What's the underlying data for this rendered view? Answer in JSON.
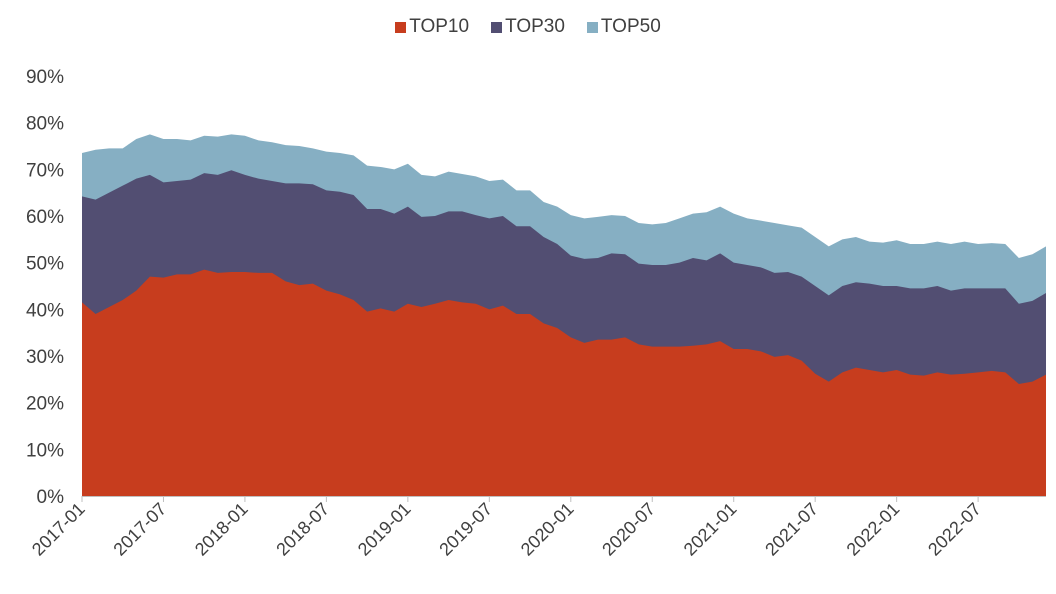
{
  "chart_data": {
    "type": "area",
    "stacked": false,
    "x": [
      "2017-01",
      "2017-02",
      "2017-03",
      "2017-04",
      "2017-05",
      "2017-06",
      "2017-07",
      "2017-08",
      "2017-09",
      "2017-10",
      "2017-11",
      "2017-12",
      "2018-01",
      "2018-02",
      "2018-03",
      "2018-04",
      "2018-05",
      "2018-06",
      "2018-07",
      "2018-08",
      "2018-09",
      "2018-10",
      "2018-11",
      "2018-12",
      "2019-01",
      "2019-02",
      "2019-03",
      "2019-04",
      "2019-05",
      "2019-06",
      "2019-07",
      "2019-08",
      "2019-09",
      "2019-10",
      "2019-11",
      "2019-12",
      "2020-01",
      "2020-02",
      "2020-03",
      "2020-04",
      "2020-05",
      "2020-06",
      "2020-07",
      "2020-08",
      "2020-09",
      "2020-10",
      "2020-11",
      "2020-12",
      "2021-01",
      "2021-02",
      "2021-03",
      "2021-04",
      "2021-05",
      "2021-06",
      "2021-07",
      "2021-08",
      "2021-09",
      "2021-10",
      "2021-11",
      "2021-12",
      "2022-01",
      "2022-02",
      "2022-03",
      "2022-04",
      "2022-05",
      "2022-06",
      "2022-07",
      "2022-08",
      "2022-09",
      "2022-10",
      "2022-11",
      "2022-12"
    ],
    "x_tick_labels": [
      "2017-01",
      "2017-07",
      "2018-01",
      "2018-07",
      "2019-01",
      "2019-07",
      "2020-01",
      "2020-07",
      "2021-01",
      "2021-07",
      "2022-01",
      "2022-07"
    ],
    "series": [
      {
        "name": "TOP50",
        "color": "#86afc3",
        "values": [
          73.5,
          74.2,
          74.5,
          74.5,
          76.5,
          77.5,
          76.5,
          76.5,
          76.2,
          77.2,
          77.0,
          77.5,
          77.2,
          76.2,
          75.8,
          75.2,
          75.0,
          74.5,
          73.8,
          73.5,
          73.0,
          70.8,
          70.5,
          70.0,
          71.2,
          68.8,
          68.5,
          69.5,
          69.0,
          68.5,
          67.5,
          67.8,
          65.5,
          65.5,
          63.0,
          62.0,
          60.2,
          59.5,
          59.8,
          60.2,
          60.0,
          58.5,
          58.2,
          58.5,
          59.5,
          60.5,
          60.8,
          62.0,
          60.5,
          59.5,
          59.0,
          58.5,
          58.0,
          57.5,
          55.5,
          53.5,
          55.0,
          55.5,
          54.5,
          54.3,
          54.8,
          54.0,
          54.0,
          54.5,
          54.0,
          54.5,
          54.0,
          54.2,
          54.0,
          51.0,
          51.8,
          53.5
        ]
      },
      {
        "name": "TOP30",
        "color": "#524e72",
        "values": [
          64.2,
          63.5,
          65.0,
          66.5,
          68.0,
          68.8,
          67.2,
          67.5,
          67.8,
          69.2,
          68.8,
          69.8,
          68.8,
          68.0,
          67.5,
          67.0,
          67.0,
          66.8,
          65.5,
          65.2,
          64.5,
          61.5,
          61.5,
          60.5,
          62.0,
          59.8,
          60.0,
          61.0,
          61.0,
          60.2,
          59.5,
          60.0,
          57.8,
          57.8,
          55.5,
          54.0,
          51.5,
          50.8,
          51.0,
          52.0,
          51.8,
          49.8,
          49.5,
          49.5,
          50.0,
          51.0,
          50.5,
          52.0,
          50.0,
          49.5,
          49.0,
          47.8,
          48.0,
          47.0,
          45.0,
          43.0,
          45.0,
          45.8,
          45.5,
          45.0,
          45.0,
          44.5,
          44.5,
          45.0,
          44.0,
          44.5,
          44.5,
          44.5,
          44.5,
          41.2,
          41.8,
          43.5
        ]
      },
      {
        "name": "TOP10",
        "color": "#c73d1e",
        "values": [
          41.5,
          39.0,
          40.5,
          42.0,
          44.0,
          47.0,
          46.8,
          47.5,
          47.5,
          48.5,
          47.8,
          48.0,
          48.0,
          47.8,
          47.8,
          46.0,
          45.2,
          45.5,
          44.0,
          43.2,
          42.0,
          39.5,
          40.2,
          39.5,
          41.2,
          40.5,
          41.2,
          42.0,
          41.5,
          41.2,
          40.0,
          40.8,
          39.0,
          39.0,
          37.0,
          36.0,
          34.0,
          32.8,
          33.5,
          33.5,
          34.0,
          32.5,
          32.0,
          32.0,
          32.0,
          32.2,
          32.5,
          33.2,
          31.5,
          31.5,
          31.0,
          29.8,
          30.2,
          29.0,
          26.2,
          24.5,
          26.5,
          27.5,
          27.0,
          26.5,
          27.0,
          26.0,
          25.8,
          26.5,
          26.0,
          26.2,
          26.5,
          26.8,
          26.5,
          24.0,
          24.5,
          26.0
        ]
      }
    ],
    "legend_order": [
      "TOP10",
      "TOP30",
      "TOP50"
    ],
    "y_tick_labels": [
      "0%",
      "10%",
      "20%",
      "30%",
      "40%",
      "50%",
      "60%",
      "70%",
      "80%",
      "90%"
    ],
    "ylim": [
      0,
      90
    ],
    "legend_position": "top-center",
    "grid": false,
    "title": "",
    "xlabel": "",
    "ylabel": ""
  }
}
